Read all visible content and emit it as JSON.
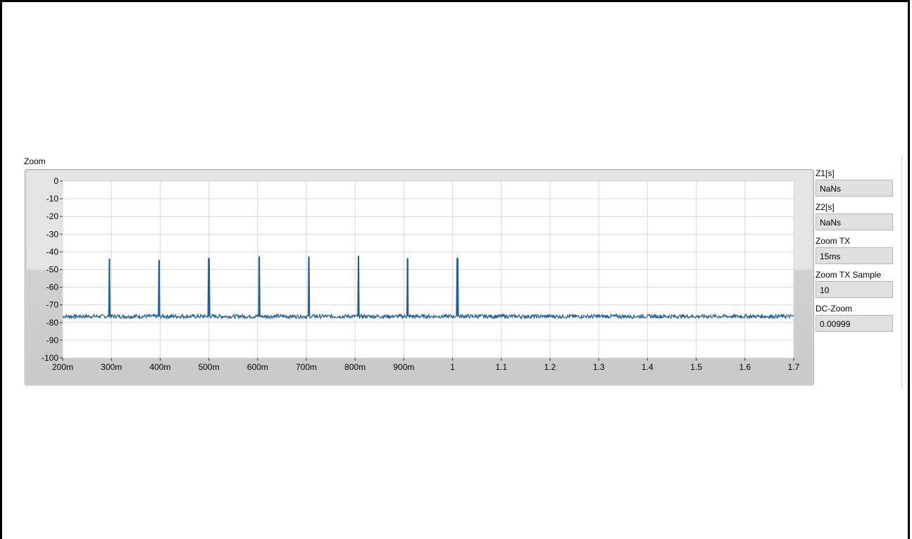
{
  "graph": {
    "label": "Zoom"
  },
  "indicators": [
    {
      "label": "Z1[s]",
      "value": "NaNs"
    },
    {
      "label": "Z2[s]",
      "value": "NaNs"
    },
    {
      "label": "Zoom TX",
      "value": "15ms"
    },
    {
      "label": "Zoom TX Sample",
      "value": "10"
    },
    {
      "label": "DC-Zoom",
      "value": "0.00999"
    }
  ],
  "chart_data": {
    "type": "line",
    "title": "Zoom",
    "xlim": [
      0.2,
      1.7
    ],
    "ylim": [
      -100,
      0
    ],
    "x_ticks": [
      0.2,
      0.3,
      0.4,
      0.5,
      0.6,
      0.7,
      0.8,
      0.9,
      1.0,
      1.1,
      1.2,
      1.3,
      1.4,
      1.5,
      1.6,
      1.7
    ],
    "x_tick_labels": [
      "200m",
      "300m",
      "400m",
      "500m",
      "600m",
      "700m",
      "800m",
      "900m",
      "1",
      "1.1",
      "1.2",
      "1.3",
      "1.4",
      "1.5",
      "1.6",
      "1.7"
    ],
    "y_ticks": [
      0,
      -10,
      -20,
      -30,
      -40,
      -50,
      -60,
      -70,
      -80,
      -90,
      -100
    ],
    "y_tick_labels": [
      "0",
      "-10",
      "-20",
      "-30",
      "-40",
      "-50",
      "-60",
      "-70",
      "-80",
      "-90",
      "-100"
    ],
    "grid": true,
    "baseline": -76.5,
    "peaks": [
      {
        "x": 0.296,
        "y": -44
      },
      {
        "x": 0.398,
        "y": -45
      },
      {
        "x": 0.5,
        "y": -44
      },
      {
        "x": 0.603,
        "y": -43
      },
      {
        "x": 0.705,
        "y": -43
      },
      {
        "x": 0.807,
        "y": -43
      },
      {
        "x": 0.908,
        "y": -44
      },
      {
        "x": 1.01,
        "y": -43.5
      }
    ],
    "line_color": "#1f5f99"
  }
}
